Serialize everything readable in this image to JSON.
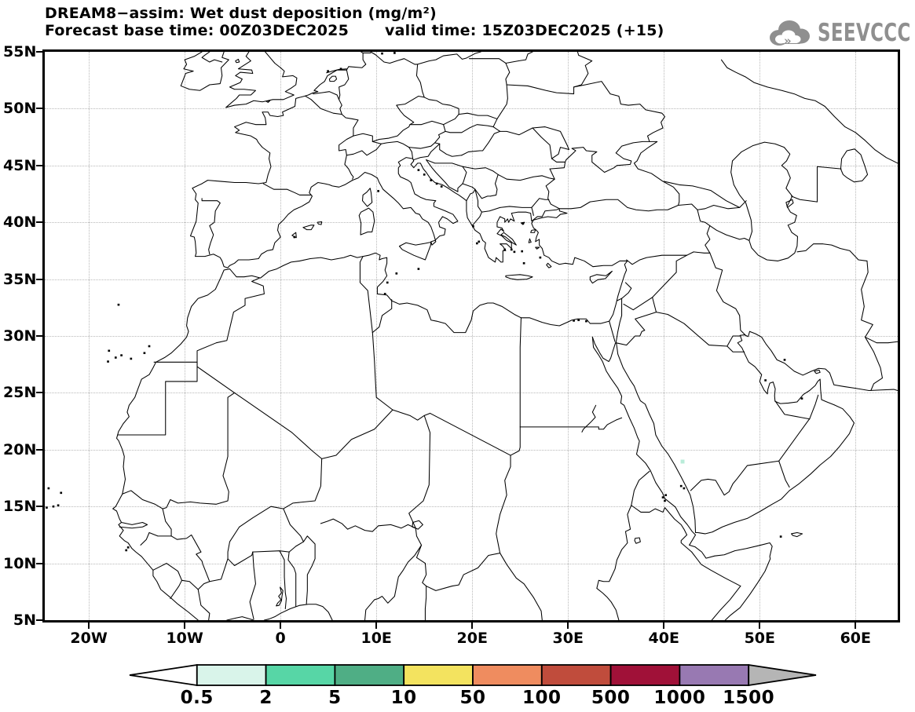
{
  "header": {
    "title": "DREAM8−assim: Wet dust deposition (mg/m²)",
    "forecast_base_label": "Forecast base time:",
    "forecast_base_time": "00Z03DEC2025",
    "valid_label": "valid time:",
    "valid_time": "15Z03DEC2025 (+15)"
  },
  "logo": {
    "text": "SEEVCCC",
    "color": "#8f8f8f"
  },
  "axes": {
    "y_ticks": [
      {
        "label": "55N",
        "lat": 55
      },
      {
        "label": "50N",
        "lat": 50
      },
      {
        "label": "45N",
        "lat": 45
      },
      {
        "label": "40N",
        "lat": 40
      },
      {
        "label": "35N",
        "lat": 35
      },
      {
        "label": "30N",
        "lat": 30
      },
      {
        "label": "25N",
        "lat": 25
      },
      {
        "label": "20N",
        "lat": 20
      },
      {
        "label": "15N",
        "lat": 15
      },
      {
        "label": "10N",
        "lat": 10
      },
      {
        "label": "5N",
        "lat": 5
      }
    ],
    "x_ticks": [
      {
        "label": "20W",
        "lon": -20
      },
      {
        "label": "10W",
        "lon": -10
      },
      {
        "label": "0",
        "lon": 0
      },
      {
        "label": "10E",
        "lon": 10
      },
      {
        "label": "20E",
        "lon": 20
      },
      {
        "label": "30E",
        "lon": 30
      },
      {
        "label": "40E",
        "lon": 40
      },
      {
        "label": "50E",
        "lon": 50
      },
      {
        "label": "60E",
        "lon": 60
      }
    ]
  },
  "colorbar": {
    "labels": [
      "0.5",
      "2",
      "5",
      "10",
      "50",
      "100",
      "500",
      "1000",
      "1500"
    ],
    "segment_colors": [
      "#d9f4ea",
      "#57d6a6",
      "#4fae85",
      "#f3e35f",
      "#ef8c5f",
      "#c04c3c",
      "#a01138",
      "#9879b2"
    ],
    "left_arrow_color": "#ffffff",
    "right_arrow_color": "#b5b5b5",
    "outline_color": "#000000",
    "units": "mg/m²"
  },
  "chart_data": {
    "type": "heatmap",
    "subtype": "geographic filled-contour forecast map (values shown only where above lowest level)",
    "title": "DREAM8−assim: Wet dust deposition (mg/m²)",
    "model": "DREAM8−assim",
    "variable": "Wet dust deposition",
    "units": "mg/m²",
    "forecast_base_time": "00Z03DEC2025",
    "valid_time": "15Z03DEC2025",
    "lead": "+15",
    "lon_range": [
      -24.6,
      64.4
    ],
    "lat_range": [
      5,
      55
    ],
    "x_tick_labels": [
      "20W",
      "10W",
      "0",
      "10E",
      "20E",
      "30E",
      "40E",
      "50E",
      "60E"
    ],
    "y_tick_labels": [
      "55N",
      "50N",
      "45N",
      "40N",
      "35N",
      "30N",
      "25N",
      "20N",
      "15N",
      "10N",
      "5N"
    ],
    "grid": {
      "lon_step_deg": 10,
      "lat_step_deg": 5,
      "style": "dotted"
    },
    "contour_levels": [
      0.5,
      2,
      5,
      10,
      50,
      100,
      500,
      1000,
      1500
    ],
    "palette": [
      "#d9f4ea",
      "#57d6a6",
      "#4fae85",
      "#f3e35f",
      "#ef8c5f",
      "#c04c3c",
      "#a01138",
      "#9879b2"
    ],
    "field_summary": "Field is almost entirely below the lowest contour level (0.5 mg/m²); map is essentially blank",
    "data_points": [
      {
        "lon": 41.95,
        "lat": 18.95,
        "value_bin": "0.5–2",
        "color": "#b9ecd9",
        "note": "single tiny wet-deposition speck near the Red Sea coast of SW Saudi Arabia"
      }
    ]
  }
}
